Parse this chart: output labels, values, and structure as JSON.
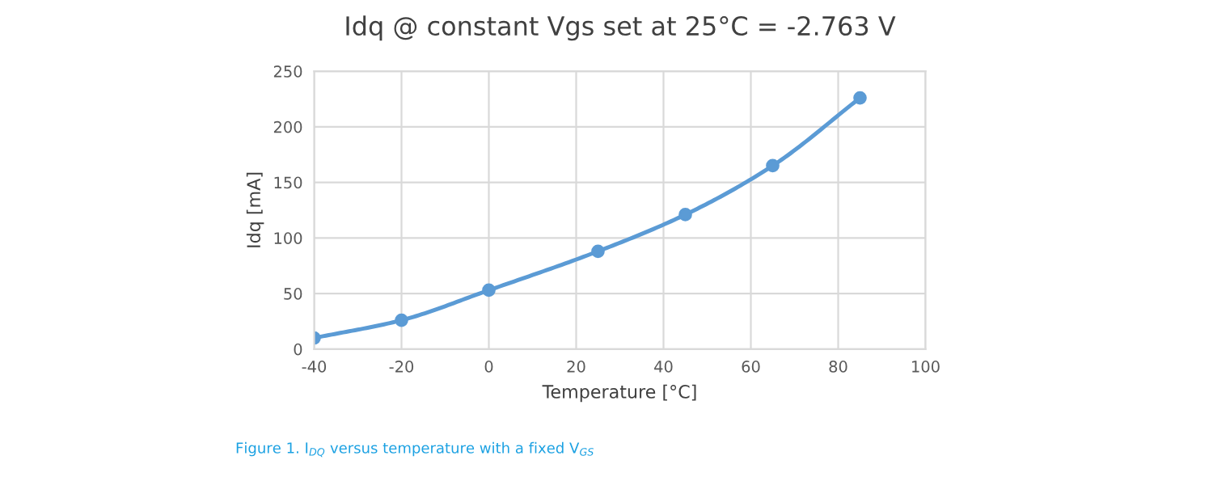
{
  "chart_data": {
    "type": "line",
    "title": "Idq @ constant Vgs set at 25°C = -2.763 V",
    "xlabel": "Temperature [°C]",
    "ylabel": "Idq [mA]",
    "x": [
      -40,
      -20,
      0,
      25,
      45,
      65,
      85
    ],
    "series": [
      {
        "color": "#5b9bd5",
        "values": [
          10,
          26,
          53,
          88,
          121,
          165,
          226
        ]
      }
    ],
    "xlim": [
      -40,
      100
    ],
    "xticks": [
      -40,
      -20,
      0,
      20,
      40,
      60,
      80,
      100
    ],
    "ylim": [
      0,
      250
    ],
    "yticks": [
      0,
      50,
      100,
      150,
      200,
      250
    ],
    "grid": true,
    "marker": "circle",
    "line_style": "solid",
    "annotations": [
      "Figure 1. I$_{DQ}$ versus temperature with a fixed V$_{GS}$"
    ]
  }
}
